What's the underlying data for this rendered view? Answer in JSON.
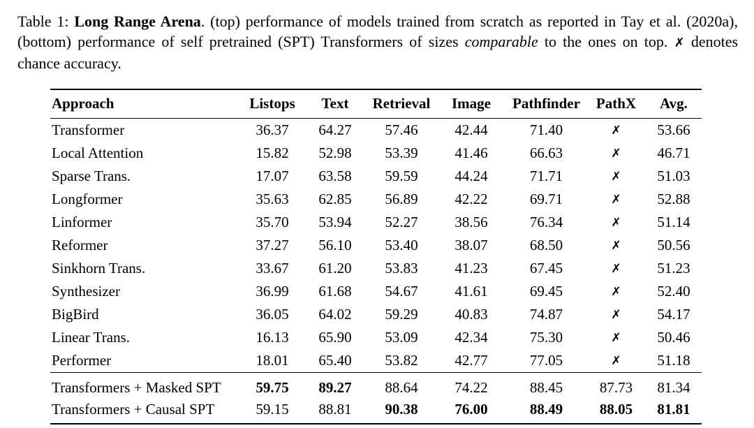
{
  "caption": {
    "segments": [
      {
        "text": "Table 1: ",
        "style": "normal"
      },
      {
        "text": "Long Range Arena",
        "style": "bold"
      },
      {
        "text": ". (top) performance of models trained from scratch as reported in Tay et al. (2020a), (bottom) performance of self pretrained (SPT) Transformers of sizes ",
        "style": "normal"
      },
      {
        "text": "comparable",
        "style": "italic"
      },
      {
        "text": " to the ones on top. ",
        "style": "normal"
      },
      {
        "text": "✗",
        "style": "xmark"
      },
      {
        "text": " denotes chance accuracy.",
        "style": "normal"
      }
    ]
  },
  "table": {
    "columns": [
      "Approach",
      "Listops",
      "Text",
      "Retrieval",
      "Image",
      "Pathfinder",
      "PathX",
      "Avg."
    ],
    "chance_marker": "✗",
    "sections": [
      {
        "id": "scratch",
        "label": "trained from scratch",
        "rows": [
          {
            "approach": "Transformer",
            "values": [
              "36.37",
              "64.27",
              "57.46",
              "42.44",
              "71.40",
              "✗",
              "53.66"
            ]
          },
          {
            "approach": "Local Attention",
            "values": [
              "15.82",
              "52.98",
              "53.39",
              "41.46",
              "66.63",
              "✗",
              "46.71"
            ]
          },
          {
            "approach": "Sparse Trans.",
            "values": [
              "17.07",
              "63.58",
              "59.59",
              "44.24",
              "71.71",
              "✗",
              "51.03"
            ]
          },
          {
            "approach": "Longformer",
            "values": [
              "35.63",
              "62.85",
              "56.89",
              "42.22",
              "69.71",
              "✗",
              "52.88"
            ]
          },
          {
            "approach": "Linformer",
            "values": [
              "35.70",
              "53.94",
              "52.27",
              "38.56",
              "76.34",
              "✗",
              "51.14"
            ]
          },
          {
            "approach": "Reformer",
            "values": [
              "37.27",
              "56.10",
              "53.40",
              "38.07",
              "68.50",
              "✗",
              "50.56"
            ]
          },
          {
            "approach": "Sinkhorn Trans.",
            "values": [
              "33.67",
              "61.20",
              "53.83",
              "41.23",
              "67.45",
              "✗",
              "51.23"
            ]
          },
          {
            "approach": "Synthesizer",
            "values": [
              "36.99",
              "61.68",
              "54.67",
              "41.61",
              "69.45",
              "✗",
              "52.40"
            ]
          },
          {
            "approach": "BigBird",
            "values": [
              "36.05",
              "64.02",
              "59.29",
              "40.83",
              "74.87",
              "✗",
              "54.17"
            ]
          },
          {
            "approach": "Linear Trans.",
            "values": [
              "16.13",
              "65.90",
              "53.09",
              "42.34",
              "75.30",
              "✗",
              "50.46"
            ]
          },
          {
            "approach": "Performer",
            "values": [
              "18.01",
              "65.40",
              "53.82",
              "42.77",
              "77.05",
              "✗",
              "51.18"
            ]
          }
        ]
      },
      {
        "id": "spt",
        "label": "self pretrained",
        "rows": [
          {
            "approach": "Transformers + Masked SPT",
            "values": [
              "59.75",
              "89.27",
              "88.64",
              "74.22",
              "88.45",
              "87.73",
              "81.34"
            ],
            "bold": [
              true,
              true,
              false,
              false,
              false,
              false,
              false
            ]
          },
          {
            "approach": "Transformers + Causal SPT",
            "values": [
              "59.15",
              "88.81",
              "90.38",
              "76.00",
              "88.49",
              "88.05",
              "81.81"
            ],
            "bold": [
              false,
              false,
              true,
              true,
              true,
              true,
              true
            ]
          }
        ]
      }
    ]
  }
}
